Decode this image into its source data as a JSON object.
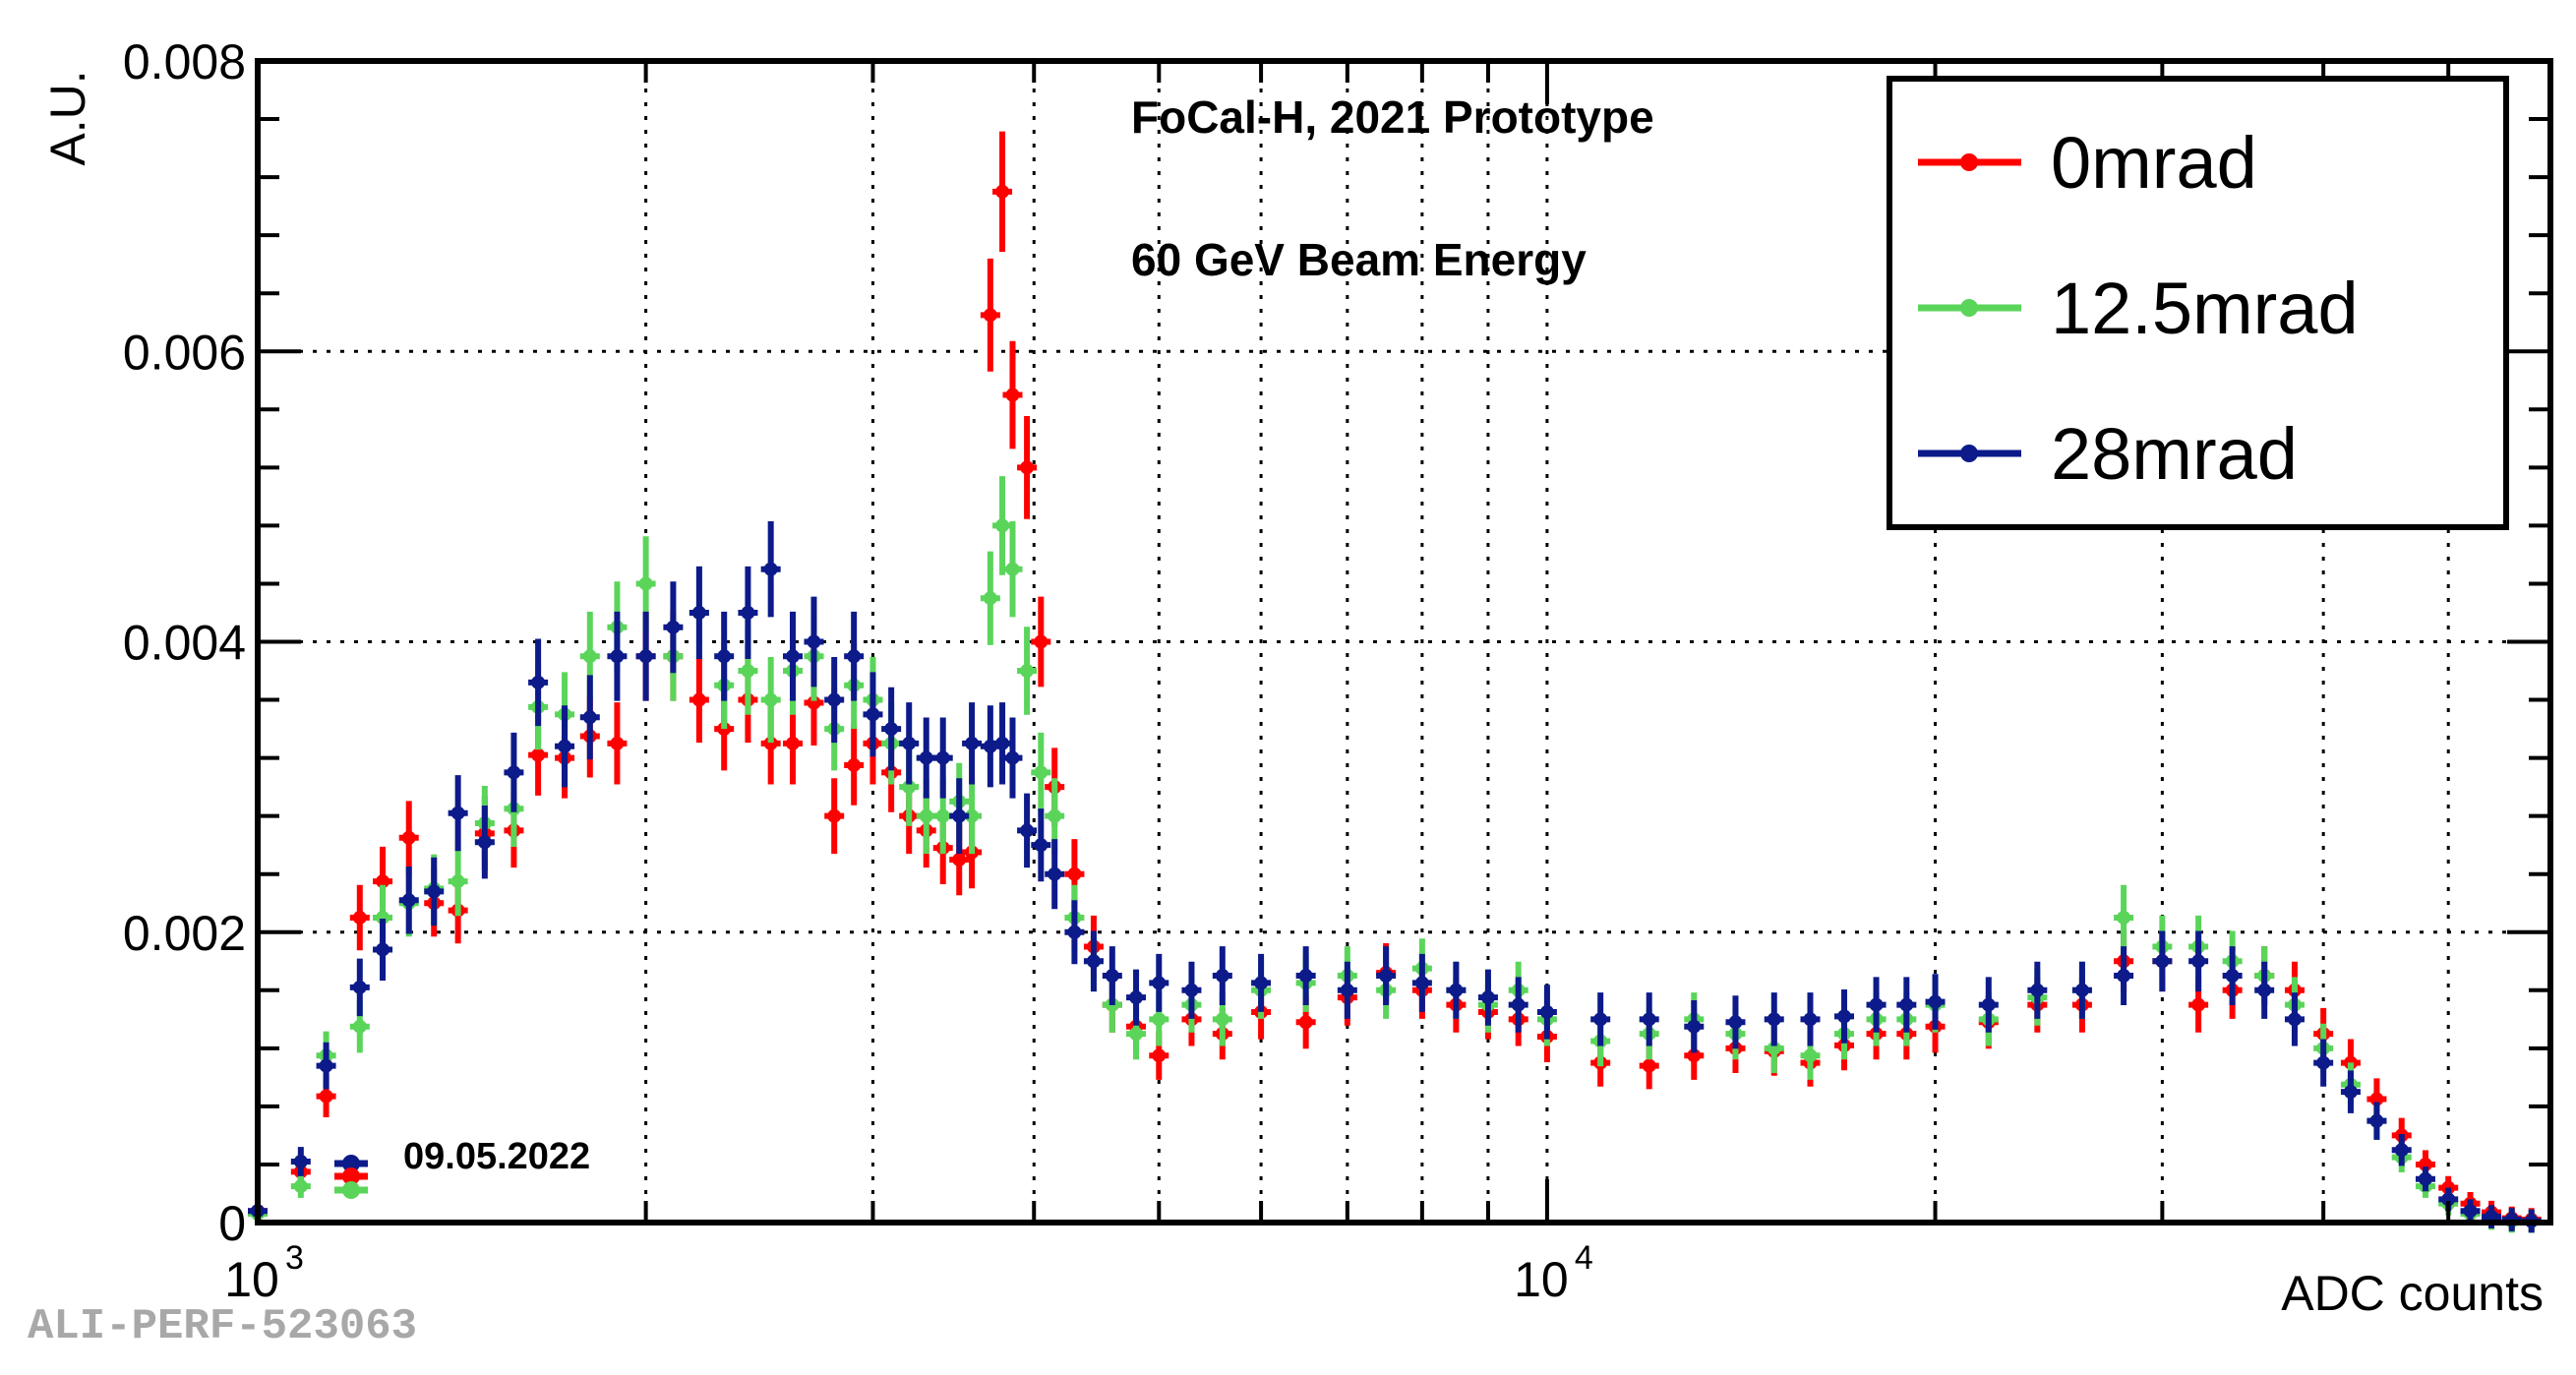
{
  "chart_data": {
    "type": "scatter",
    "title": "",
    "xlabel": "ADC counts",
    "ylabel": "A.U.",
    "xscale": "log",
    "xlim": [
      1000,
      60000
    ],
    "ylim": [
      0,
      0.008
    ],
    "grid": true,
    "y_ticks": [
      "0",
      "0.002",
      "0.004",
      "0.006",
      "0.008"
    ],
    "x_tick_base": "10",
    "x_ticks": [
      {
        "value": 1000,
        "exp": "3"
      },
      {
        "value": 10000,
        "exp": "4"
      }
    ],
    "annotations": [
      "FoCal-H, 2021 Prototype",
      "60 GeV Beam Energy"
    ],
    "date_label": "09.05.2022",
    "legend_position": "top-right",
    "series": [
      {
        "name": "0mrad",
        "color": "#ff0000",
        "points": [
          [
            1000,
            8e-05
          ],
          [
            1080,
            0.00035
          ],
          [
            1130,
            0.00087
          ],
          [
            1200,
            0.0021
          ],
          [
            1250,
            0.00235
          ],
          [
            1310,
            0.00265
          ],
          [
            1370,
            0.0022
          ],
          [
            1430,
            0.00215
          ],
          [
            1500,
            0.00268
          ],
          [
            1580,
            0.0027
          ],
          [
            1650,
            0.00322
          ],
          [
            1730,
            0.0032
          ],
          [
            1810,
            0.00335
          ],
          [
            1900,
            0.0033
          ],
          [
            2000,
            0.0039
          ],
          [
            2100,
            0.0039
          ],
          [
            2200,
            0.0036
          ],
          [
            2300,
            0.0034
          ],
          [
            2400,
            0.0036
          ],
          [
            2500,
            0.0033
          ],
          [
            2600,
            0.0033
          ],
          [
            2700,
            0.00358
          ],
          [
            2800,
            0.0028
          ],
          [
            2900,
            0.00315
          ],
          [
            3000,
            0.0033
          ],
          [
            3100,
            0.0031
          ],
          [
            3200,
            0.0028
          ],
          [
            3300,
            0.0027
          ],
          [
            3400,
            0.00258
          ],
          [
            3500,
            0.0025
          ],
          [
            3580,
            0.00255
          ],
          [
            3700,
            0.00625
          ],
          [
            3780,
            0.0071
          ],
          [
            3850,
            0.0057
          ],
          [
            3950,
            0.0052
          ],
          [
            4050,
            0.004
          ],
          [
            4150,
            0.003
          ],
          [
            4300,
            0.0024
          ],
          [
            4450,
            0.0019
          ],
          [
            4600,
            0.0015
          ],
          [
            4800,
            0.00135
          ],
          [
            5000,
            0.00115
          ],
          [
            5300,
            0.0014
          ],
          [
            5600,
            0.0013
          ],
          [
            6000,
            0.00145
          ],
          [
            6500,
            0.00138
          ],
          [
            7000,
            0.00155
          ],
          [
            7500,
            0.00172
          ],
          [
            8000,
            0.0016
          ],
          [
            8500,
            0.0015
          ],
          [
            9000,
            0.00145
          ],
          [
            9500,
            0.0014
          ],
          [
            10000,
            0.00128
          ],
          [
            11000,
            0.0011
          ],
          [
            12000,
            0.00108
          ],
          [
            13000,
            0.00115
          ],
          [
            14000,
            0.0012
          ],
          [
            15000,
            0.00118
          ],
          [
            16000,
            0.0011
          ],
          [
            17000,
            0.00122
          ],
          [
            18000,
            0.0013
          ],
          [
            19000,
            0.0013
          ],
          [
            20000,
            0.00135
          ],
          [
            22000,
            0.00138
          ],
          [
            24000,
            0.0015
          ],
          [
            26000,
            0.0015
          ],
          [
            28000,
            0.0018
          ],
          [
            30000,
            0.0018
          ],
          [
            32000,
            0.0015
          ],
          [
            34000,
            0.0016
          ],
          [
            36000,
            0.0017
          ],
          [
            38000,
            0.0016
          ],
          [
            40000,
            0.0013
          ],
          [
            42000,
            0.0011
          ],
          [
            44000,
            0.00085
          ],
          [
            46000,
            0.0006
          ],
          [
            48000,
            0.0004
          ],
          [
            50000,
            0.00024
          ],
          [
            52000,
            0.00013
          ],
          [
            54000,
            7e-05
          ],
          [
            56000,
            3e-05
          ],
          [
            58000,
            2e-05
          ]
        ]
      },
      {
        "name": "12.5mrad",
        "color": "#5ad55a",
        "points": [
          [
            1000,
            6e-05
          ],
          [
            1080,
            0.00025
          ],
          [
            1130,
            0.00115
          ],
          [
            1200,
            0.00135
          ],
          [
            1250,
            0.0021
          ],
          [
            1310,
            0.0022
          ],
          [
            1370,
            0.0023
          ],
          [
            1430,
            0.00235
          ],
          [
            1500,
            0.00275
          ],
          [
            1580,
            0.00285
          ],
          [
            1650,
            0.00355
          ],
          [
            1730,
            0.0035
          ],
          [
            1810,
            0.0039
          ],
          [
            1900,
            0.0041
          ],
          [
            2000,
            0.0044
          ],
          [
            2100,
            0.0039
          ],
          [
            2200,
            0.0042
          ],
          [
            2300,
            0.0037
          ],
          [
            2400,
            0.0038
          ],
          [
            2500,
            0.0036
          ],
          [
            2600,
            0.0038
          ],
          [
            2700,
            0.0039
          ],
          [
            2800,
            0.0034
          ],
          [
            2900,
            0.0037
          ],
          [
            3000,
            0.0036
          ],
          [
            3100,
            0.0033
          ],
          [
            3200,
            0.003
          ],
          [
            3300,
            0.0028
          ],
          [
            3400,
            0.0028
          ],
          [
            3500,
            0.0029
          ],
          [
            3580,
            0.0028
          ],
          [
            3700,
            0.0043
          ],
          [
            3780,
            0.0048
          ],
          [
            3850,
            0.0045
          ],
          [
            3950,
            0.0038
          ],
          [
            4050,
            0.0031
          ],
          [
            4150,
            0.0028
          ],
          [
            4300,
            0.0021
          ],
          [
            4450,
            0.0018
          ],
          [
            4600,
            0.0015
          ],
          [
            4800,
            0.0013
          ],
          [
            5000,
            0.0014
          ],
          [
            5300,
            0.0015
          ],
          [
            5600,
            0.0014
          ],
          [
            6000,
            0.0016
          ],
          [
            6500,
            0.00165
          ],
          [
            7000,
            0.0017
          ],
          [
            7500,
            0.0016
          ],
          [
            8000,
            0.00175
          ],
          [
            8500,
            0.0016
          ],
          [
            9000,
            0.0015
          ],
          [
            9500,
            0.0016
          ],
          [
            10000,
            0.0014
          ],
          [
            11000,
            0.00125
          ],
          [
            12000,
            0.0013
          ],
          [
            13000,
            0.0014
          ],
          [
            14000,
            0.0013
          ],
          [
            15000,
            0.0012
          ],
          [
            16000,
            0.00115
          ],
          [
            17000,
            0.0013
          ],
          [
            18000,
            0.0014
          ],
          [
            19000,
            0.0014
          ],
          [
            20000,
            0.0015
          ],
          [
            22000,
            0.0014
          ],
          [
            24000,
            0.00155
          ],
          [
            26000,
            0.0016
          ],
          [
            28000,
            0.0021
          ],
          [
            30000,
            0.0019
          ],
          [
            32000,
            0.0019
          ],
          [
            34000,
            0.0018
          ],
          [
            36000,
            0.0017
          ],
          [
            38000,
            0.0015
          ],
          [
            40000,
            0.0012
          ],
          [
            42000,
            0.00095
          ],
          [
            44000,
            0.0007
          ],
          [
            46000,
            0.00045
          ],
          [
            48000,
            0.00025
          ],
          [
            50000,
            0.00013
          ],
          [
            52000,
            6e-05
          ],
          [
            54000,
            3e-05
          ],
          [
            56000,
            1e-05
          ],
          [
            58000,
            1e-05
          ]
        ]
      },
      {
        "name": "28mrad",
        "color": "#0c1a8a",
        "points": [
          [
            1000,
            8e-05
          ],
          [
            1080,
            0.00042
          ],
          [
            1130,
            0.00108
          ],
          [
            1200,
            0.00162
          ],
          [
            1250,
            0.00188
          ],
          [
            1310,
            0.00222
          ],
          [
            1370,
            0.00228
          ],
          [
            1430,
            0.00282
          ],
          [
            1500,
            0.00262
          ],
          [
            1580,
            0.0031
          ],
          [
            1650,
            0.00372
          ],
          [
            1730,
            0.00328
          ],
          [
            1810,
            0.00348
          ],
          [
            1900,
            0.0039
          ],
          [
            2000,
            0.0039
          ],
          [
            2100,
            0.0041
          ],
          [
            2200,
            0.0042
          ],
          [
            2300,
            0.0039
          ],
          [
            2400,
            0.0042
          ],
          [
            2500,
            0.0045
          ],
          [
            2600,
            0.0039
          ],
          [
            2700,
            0.004
          ],
          [
            2800,
            0.0036
          ],
          [
            2900,
            0.0039
          ],
          [
            3000,
            0.0035
          ],
          [
            3100,
            0.0034
          ],
          [
            3200,
            0.0033
          ],
          [
            3300,
            0.0032
          ],
          [
            3400,
            0.0032
          ],
          [
            3500,
            0.0028
          ],
          [
            3580,
            0.0033
          ],
          [
            3700,
            0.00328
          ],
          [
            3780,
            0.0033
          ],
          [
            3850,
            0.0032
          ],
          [
            3950,
            0.0027
          ],
          [
            4050,
            0.0026
          ],
          [
            4150,
            0.0024
          ],
          [
            4300,
            0.002
          ],
          [
            4450,
            0.0018
          ],
          [
            4600,
            0.0017
          ],
          [
            4800,
            0.00155
          ],
          [
            5000,
            0.00165
          ],
          [
            5300,
            0.0016
          ],
          [
            5600,
            0.0017
          ],
          [
            6000,
            0.00165
          ],
          [
            6500,
            0.0017
          ],
          [
            7000,
            0.0016
          ],
          [
            7500,
            0.0017
          ],
          [
            8000,
            0.00165
          ],
          [
            8500,
            0.0016
          ],
          [
            9000,
            0.00155
          ],
          [
            9500,
            0.0015
          ],
          [
            10000,
            0.00145
          ],
          [
            11000,
            0.0014
          ],
          [
            12000,
            0.0014
          ],
          [
            13000,
            0.00135
          ],
          [
            14000,
            0.00138
          ],
          [
            15000,
            0.0014
          ],
          [
            16000,
            0.0014
          ],
          [
            17000,
            0.00142
          ],
          [
            18000,
            0.0015
          ],
          [
            19000,
            0.0015
          ],
          [
            20000,
            0.00152
          ],
          [
            22000,
            0.0015
          ],
          [
            24000,
            0.0016
          ],
          [
            26000,
            0.0016
          ],
          [
            28000,
            0.0017
          ],
          [
            30000,
            0.0018
          ],
          [
            32000,
            0.0018
          ],
          [
            34000,
            0.0017
          ],
          [
            36000,
            0.0016
          ],
          [
            38000,
            0.0014
          ],
          [
            40000,
            0.0011
          ],
          [
            42000,
            0.0009
          ],
          [
            44000,
            0.0007
          ],
          [
            46000,
            0.0005
          ],
          [
            48000,
            0.0003
          ],
          [
            50000,
            0.00016
          ],
          [
            52000,
            8e-05
          ],
          [
            54000,
            4e-05
          ],
          [
            56000,
            2e-05
          ],
          [
            58000,
            1e-05
          ]
        ]
      }
    ]
  },
  "watermark": "ALI-PERF-523063"
}
